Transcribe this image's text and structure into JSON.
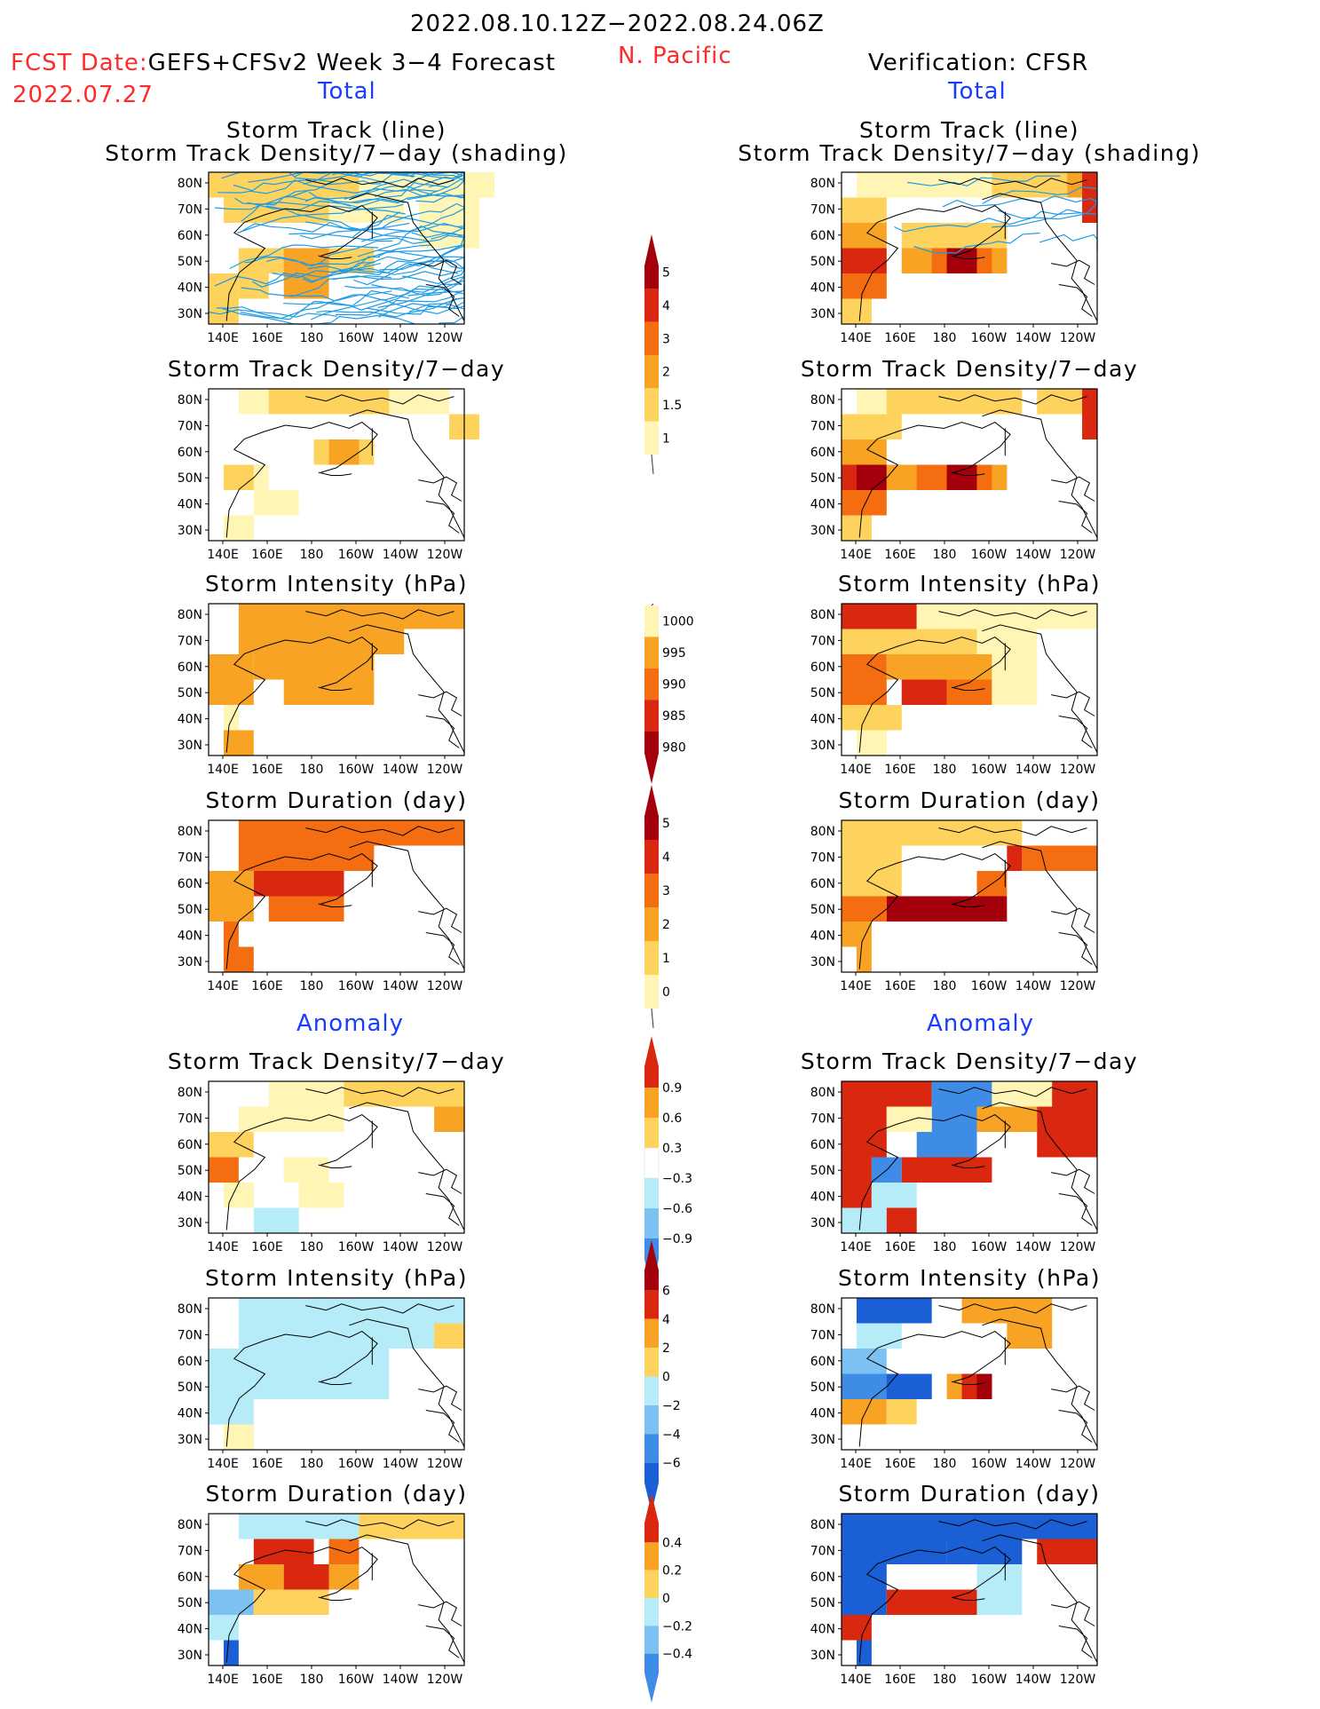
{
  "header": {
    "date_range": "2022.08.10.12Z−2022.08.24.06Z",
    "fcst_label": "FCST Date:",
    "model": "GEFS+CFSv2 Week 3−4 Forecast",
    "fcst_date": "2022.07.27",
    "region": "N. Pacific",
    "verification": "Verification: CFSR",
    "total_left": "Total",
    "total_right": "Total",
    "anomaly_left": "Anomaly",
    "anomaly_right": "Anomaly"
  },
  "colors": {
    "c1": "#fff5b5",
    "c2": "#fdd35e",
    "c3": "#f9a325",
    "c4": "#f46d10",
    "c5": "#d9280f",
    "c6": "#a3000b",
    "b1": "#b5ecf7",
    "b2": "#7cc1f1",
    "b3": "#3f8ce6",
    "b4": "#1a5fd6",
    "track_line": "#1e9be6",
    "map_line": "#000000"
  },
  "axes": {
    "x_ticks": [
      "140E",
      "160E",
      "180",
      "160W",
      "140W",
      "120W"
    ],
    "y_ticks": [
      "80N",
      "70N",
      "60N",
      "50N",
      "40N",
      "30N"
    ]
  },
  "colorbars": [
    {
      "id": "density",
      "labels": [
        "5",
        "4",
        "3",
        "2",
        "1.5",
        "1"
      ],
      "colors": [
        "c6",
        "c5",
        "c4",
        "c3",
        "c2",
        "c1"
      ],
      "top_arrow": true,
      "bottom_arrow": false
    },
    {
      "id": "intensity",
      "labels": [
        "1000",
        "995",
        "990",
        "985",
        "980"
      ],
      "colors": [
        "c1",
        "c3",
        "c4",
        "c5",
        "c6"
      ],
      "top_arrow": false,
      "bottom_arrow": true
    },
    {
      "id": "duration",
      "labels": [
        "5",
        "4",
        "3",
        "2",
        "1",
        "0"
      ],
      "colors": [
        "c6",
        "c5",
        "c4",
        "c3",
        "c2",
        "c1"
      ],
      "top_arrow": true,
      "bottom_arrow": false
    },
    {
      "id": "anom_density",
      "labels": [
        "0.9",
        "0.6",
        "0.3",
        "−0.3",
        "−0.6",
        "−0.9"
      ],
      "colors": [
        "c5",
        "c3",
        "c2",
        "white",
        "b1",
        "b2",
        "b3"
      ],
      "top_arrow": true,
      "bottom_arrow": true
    },
    {
      "id": "anom_intensity",
      "labels": [
        "6",
        "4",
        "2",
        "0",
        "−2",
        "−4",
        "−6"
      ],
      "colors": [
        "c6",
        "c5",
        "c3",
        "c2",
        "b1",
        "b2",
        "b3",
        "b4"
      ],
      "top_arrow": true,
      "bottom_arrow": true
    },
    {
      "id": "anom_duration",
      "labels": [
        "0.4",
        "0.2",
        "0",
        "−0.2",
        "−0.4"
      ],
      "colors": [
        "c5",
        "c3",
        "c2",
        "b1",
        "b2",
        "b3"
      ],
      "top_arrow": true,
      "bottom_arrow": true
    }
  ],
  "chart_data": [
    {
      "type": "heatmap",
      "id": "L0",
      "title": "Storm Track (line)",
      "subtitle": "Storm Track Density/7−day (shading)",
      "has_tracks": true,
      "track_density": "high",
      "cells": [
        [
          0,
          0,
          10,
          1,
          "c2"
        ],
        [
          10,
          0,
          19,
          1,
          "c1"
        ],
        [
          1,
          1,
          8,
          2,
          "c2"
        ],
        [
          8,
          1,
          13,
          2,
          "c1"
        ],
        [
          14,
          1,
          18,
          3,
          "c1"
        ],
        [
          2,
          3,
          6,
          4,
          "c2"
        ],
        [
          5,
          3,
          8,
          5,
          "c3"
        ],
        [
          2,
          4,
          4,
          5,
          "c2"
        ],
        [
          0,
          4,
          2,
          6,
          "c2"
        ],
        [
          8,
          3,
          11,
          4,
          "c2"
        ]
      ]
    },
    {
      "type": "heatmap",
      "id": "R0",
      "title": "Storm Track (line)",
      "subtitle": "Storm Track Density/7−day (shading)",
      "has_tracks": true,
      "track_density": "low",
      "cells": [
        [
          1,
          0,
          10,
          1,
          "c1"
        ],
        [
          10,
          0,
          15,
          1,
          "c2"
        ],
        [
          15,
          0,
          17,
          1,
          "c3"
        ],
        [
          16,
          0,
          17,
          2,
          "c5"
        ],
        [
          0,
          1,
          3,
          2,
          "c2"
        ],
        [
          0,
          2,
          3,
          3,
          "c3"
        ],
        [
          4,
          2,
          11,
          3,
          "c2"
        ],
        [
          0,
          3,
          3,
          4,
          "c5"
        ],
        [
          0,
          4,
          3,
          5,
          "c4"
        ],
        [
          4,
          3,
          11,
          4,
          "c3"
        ],
        [
          6,
          3,
          10,
          4,
          "c4"
        ],
        [
          7,
          3,
          9,
          4,
          "c6"
        ],
        [
          0,
          5,
          2,
          6,
          "c2"
        ]
      ]
    },
    {
      "type": "heatmap",
      "id": "L1",
      "title": "Storm Track Density/7−day",
      "cells": [
        [
          2,
          0,
          16,
          1,
          "c1"
        ],
        [
          4,
          0,
          12,
          1,
          "c2"
        ],
        [
          16,
          1,
          18,
          2,
          "c2"
        ],
        [
          7,
          2,
          11,
          3,
          "c2"
        ],
        [
          8,
          2,
          10,
          3,
          "c3"
        ],
        [
          1,
          3,
          4,
          4,
          "c1"
        ],
        [
          1,
          3,
          3,
          4,
          "c2"
        ],
        [
          3,
          4,
          6,
          5,
          "c1"
        ],
        [
          1,
          5,
          3,
          6,
          "c1"
        ]
      ]
    },
    {
      "type": "heatmap",
      "id": "R1",
      "title": "Storm Track Density/7−day",
      "cells": [
        [
          1,
          0,
          12,
          1,
          "c1"
        ],
        [
          3,
          0,
          12,
          1,
          "c2"
        ],
        [
          13,
          0,
          16,
          1,
          "c2"
        ],
        [
          16,
          0,
          17,
          1,
          "c3"
        ],
        [
          16,
          0,
          17,
          2,
          "c5"
        ],
        [
          0,
          1,
          4,
          2,
          "c2"
        ],
        [
          0,
          2,
          3,
          3,
          "c3"
        ],
        [
          0,
          3,
          3,
          4,
          "c5"
        ],
        [
          1,
          3,
          3,
          4,
          "c6"
        ],
        [
          0,
          4,
          3,
          5,
          "c4"
        ],
        [
          0,
          5,
          2,
          6,
          "c2"
        ],
        [
          3,
          3,
          11,
          4,
          "c3"
        ],
        [
          5,
          3,
          10,
          4,
          "c4"
        ],
        [
          7,
          3,
          9,
          4,
          "c6"
        ]
      ]
    },
    {
      "type": "heatmap",
      "id": "L2",
      "title": "Storm Intensity (hPa)",
      "cells": [
        [
          2,
          0,
          13,
          2,
          "c3"
        ],
        [
          12,
          0,
          17,
          1,
          "c3"
        ],
        [
          3,
          1,
          8,
          3,
          "c3"
        ],
        [
          5,
          2,
          11,
          4,
          "c3"
        ],
        [
          0,
          2,
          3,
          4,
          "c3"
        ],
        [
          1,
          4,
          2,
          5,
          "c1"
        ],
        [
          1,
          5,
          3,
          6,
          "c3"
        ]
      ]
    },
    {
      "type": "heatmap",
      "id": "R2",
      "title": "Storm Intensity (hPa)",
      "cells": [
        [
          0,
          0,
          5,
          1,
          "c5"
        ],
        [
          5,
          0,
          12,
          1,
          "c1"
        ],
        [
          12,
          0,
          17,
          1,
          "c1"
        ],
        [
          0,
          1,
          9,
          2,
          "c2"
        ],
        [
          9,
          1,
          13,
          2,
          "c1"
        ],
        [
          0,
          2,
          3,
          3,
          "c4"
        ],
        [
          3,
          2,
          10,
          3,
          "c3"
        ],
        [
          4,
          3,
          7,
          4,
          "c5"
        ],
        [
          7,
          3,
          10,
          4,
          "c4"
        ],
        [
          10,
          2,
          13,
          4,
          "c1"
        ],
        [
          0,
          3,
          3,
          4,
          "c4"
        ],
        [
          0,
          4,
          4,
          5,
          "c2"
        ],
        [
          1,
          5,
          3,
          6,
          "c1"
        ]
      ]
    },
    {
      "type": "heatmap",
      "id": "L3",
      "title": "Storm Duration (day)",
      "cells": [
        [
          2,
          0,
          17,
          1,
          "c4"
        ],
        [
          2,
          1,
          11,
          2,
          "c4"
        ],
        [
          3,
          2,
          9,
          3,
          "c5"
        ],
        [
          4,
          3,
          9,
          4,
          "c4"
        ],
        [
          0,
          2,
          3,
          4,
          "c3"
        ],
        [
          1,
          4,
          2,
          5,
          "c4"
        ],
        [
          1,
          5,
          3,
          6,
          "c4"
        ]
      ]
    },
    {
      "type": "heatmap",
      "id": "R3",
      "title": "Storm Duration (day)",
      "cells": [
        [
          0,
          0,
          12,
          1,
          "c2"
        ],
        [
          12,
          1,
          17,
          2,
          "c4"
        ],
        [
          0,
          1,
          4,
          3,
          "c2"
        ],
        [
          0,
          3,
          3,
          4,
          "c4"
        ],
        [
          3,
          3,
          11,
          4,
          "c6"
        ],
        [
          9,
          2,
          11,
          3,
          "c4"
        ],
        [
          11,
          1,
          12,
          2,
          "c5"
        ],
        [
          0,
          4,
          2,
          5,
          "c3"
        ],
        [
          1,
          5,
          2,
          6,
          "c3"
        ]
      ]
    },
    {
      "type": "heatmap",
      "id": "L4",
      "title": "Storm Track Density/7−day",
      "cells": [
        [
          4,
          0,
          15,
          1,
          "c1"
        ],
        [
          9,
          0,
          17,
          1,
          "c2"
        ],
        [
          15,
          1,
          17,
          2,
          "c3"
        ],
        [
          2,
          1,
          9,
          2,
          "c1"
        ],
        [
          0,
          2,
          3,
          3,
          "c2"
        ],
        [
          0,
          3,
          2,
          4,
          "c4"
        ],
        [
          1,
          4,
          3,
          5,
          "c1"
        ],
        [
          5,
          3,
          8,
          4,
          "c1"
        ],
        [
          6,
          4,
          9,
          5,
          "c1"
        ],
        [
          3,
          5,
          6,
          6,
          "b1"
        ]
      ]
    },
    {
      "type": "heatmap",
      "id": "R4",
      "title": "Storm Track Density/7−day",
      "cells": [
        [
          0,
          0,
          6,
          1,
          "c5"
        ],
        [
          6,
          0,
          10,
          2,
          "b3"
        ],
        [
          10,
          0,
          14,
          1,
          "c1"
        ],
        [
          14,
          0,
          17,
          1,
          "c5"
        ],
        [
          0,
          1,
          3,
          3,
          "c5"
        ],
        [
          3,
          1,
          6,
          2,
          "c1"
        ],
        [
          5,
          2,
          9,
          3,
          "b3"
        ],
        [
          9,
          1,
          13,
          2,
          "c3"
        ],
        [
          13,
          1,
          17,
          3,
          "c5"
        ],
        [
          0,
          3,
          2,
          5,
          "c5"
        ],
        [
          2,
          3,
          4,
          4,
          "b3"
        ],
        [
          4,
          3,
          10,
          4,
          "c5"
        ],
        [
          2,
          4,
          5,
          5,
          "b1"
        ],
        [
          0,
          5,
          3,
          6,
          "b1"
        ],
        [
          3,
          5,
          5,
          6,
          "c5"
        ]
      ]
    },
    {
      "type": "heatmap",
      "id": "L5",
      "title": "Storm Intensity (hPa)",
      "cells": [
        [
          2,
          0,
          17,
          2,
          "b1"
        ],
        [
          0,
          2,
          12,
          4,
          "b1"
        ],
        [
          0,
          4,
          3,
          5,
          "b1"
        ],
        [
          15,
          1,
          17,
          2,
          "c2"
        ],
        [
          1,
          5,
          3,
          6,
          "c1"
        ]
      ]
    },
    {
      "type": "heatmap",
      "id": "R5",
      "title": "Storm Intensity (hPa)",
      "cells": [
        [
          1,
          0,
          6,
          1,
          "b4"
        ],
        [
          8,
          0,
          14,
          1,
          "c3"
        ],
        [
          11,
          1,
          14,
          2,
          "c3"
        ],
        [
          1,
          1,
          4,
          2,
          "b1"
        ],
        [
          0,
          2,
          3,
          3,
          "b2"
        ],
        [
          0,
          3,
          6,
          4,
          "b3"
        ],
        [
          3,
          3,
          6,
          4,
          "b4"
        ],
        [
          7,
          3,
          10,
          4,
          "c3"
        ],
        [
          8,
          3,
          10,
          4,
          "c5"
        ],
        [
          9,
          3,
          10,
          4,
          "c6"
        ],
        [
          0,
          4,
          3,
          5,
          "c3"
        ],
        [
          3,
          4,
          5,
          5,
          "c2"
        ]
      ]
    },
    {
      "type": "heatmap",
      "id": "L6",
      "title": "Storm Duration (day)",
      "cells": [
        [
          2,
          0,
          10,
          1,
          "b1"
        ],
        [
          10,
          0,
          17,
          1,
          "c2"
        ],
        [
          3,
          1,
          7,
          2,
          "c5"
        ],
        [
          8,
          1,
          10,
          2,
          "c4"
        ],
        [
          2,
          2,
          5,
          3,
          "c3"
        ],
        [
          5,
          2,
          8,
          3,
          "c5"
        ],
        [
          8,
          2,
          10,
          3,
          "c3"
        ],
        [
          0,
          3,
          3,
          4,
          "b2"
        ],
        [
          3,
          3,
          8,
          4,
          "c2"
        ],
        [
          0,
          4,
          2,
          5,
          "b1"
        ],
        [
          1,
          5,
          2,
          6,
          "b4"
        ]
      ]
    },
    {
      "type": "heatmap",
      "id": "R6",
      "title": "Storm Duration (day)",
      "cells": [
        [
          0,
          0,
          17,
          1,
          "b4"
        ],
        [
          0,
          1,
          7,
          2,
          "b4"
        ],
        [
          7,
          1,
          12,
          2,
          "b4"
        ],
        [
          13,
          1,
          17,
          2,
          "c5"
        ],
        [
          0,
          2,
          3,
          4,
          "b4"
        ],
        [
          3,
          3,
          9,
          4,
          "c5"
        ],
        [
          9,
          2,
          12,
          4,
          "b1"
        ],
        [
          0,
          4,
          2,
          5,
          "c5"
        ],
        [
          1,
          5,
          2,
          6,
          "b4"
        ]
      ]
    }
  ]
}
